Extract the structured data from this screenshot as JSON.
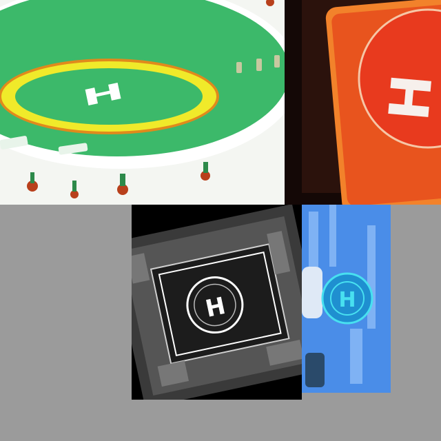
{
  "collage": {
    "background": "#9b9b9b",
    "tiles": [
      {
        "id": "green-helipad",
        "helipad_letter": "H",
        "colors": {
          "pad": "#3cb96a",
          "ring": "#f0ea2a",
          "ring_edge": "#e08a1c",
          "edge": "#ffffff"
        }
      },
      {
        "id": "red-helipad",
        "helipad_letter": "H",
        "colors": {
          "pad": "#e83a1e",
          "mat": "#f2822b"
        }
      },
      {
        "id": "aerial-rooftop-helipad",
        "helipad_letter": "H",
        "colors": {
          "ground": "#2a2a2a",
          "markings": "#ffffff"
        }
      },
      {
        "id": "blue-helipad-badge",
        "helipad_letter": "H",
        "colors": {
          "background": "#4a8de8",
          "badge": "#1f8fd0",
          "badge_ring": "#48e0f0"
        }
      }
    ]
  }
}
